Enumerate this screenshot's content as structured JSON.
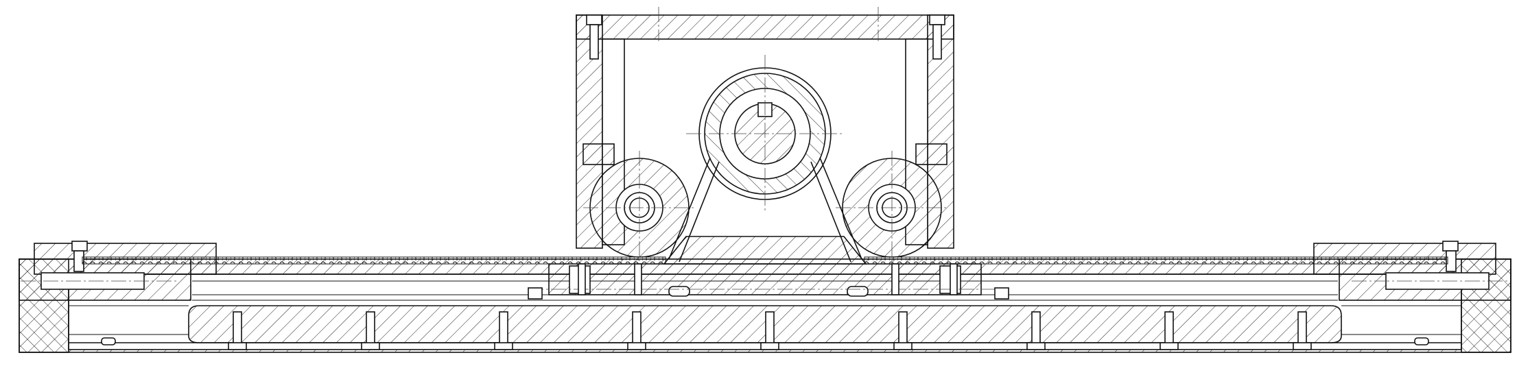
{
  "drawing": {
    "description_name": "linear-belt-actuator-cross-section",
    "line_color": "#111111",
    "background_color": "#ffffff"
  }
}
